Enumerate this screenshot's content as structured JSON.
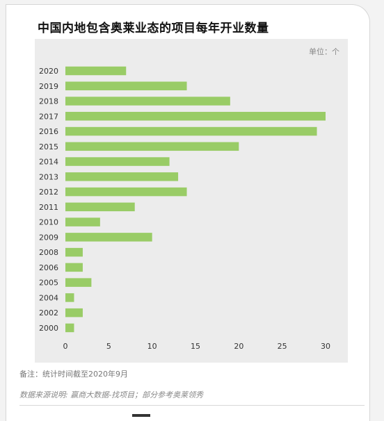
{
  "title": "中国内地包含奥莱业态的项目每年开业数量",
  "note": "备注：统计时间截至2020年9月",
  "source": "数据来源说明: 赢商大数据-找项目；部分参考奥莱领秀",
  "chart_data": {
    "type": "bar",
    "orientation": "horizontal",
    "unit_label": "单位：个",
    "categories": [
      "2020",
      "2019",
      "2018",
      "2017",
      "2016",
      "2015",
      "2014",
      "2013",
      "2012",
      "2011",
      "2010",
      "2009",
      "2008",
      "2006",
      "2005",
      "2004",
      "2002",
      "2000"
    ],
    "values": [
      7,
      14,
      19,
      30,
      29,
      20,
      12,
      13,
      14,
      8,
      4,
      10,
      2,
      2,
      3,
      1,
      2,
      1
    ],
    "x_ticks": [
      0,
      5,
      10,
      15,
      20,
      25,
      30
    ],
    "xlim": [
      0,
      30
    ],
    "bar_color": "#99cc66",
    "grid": false
  }
}
